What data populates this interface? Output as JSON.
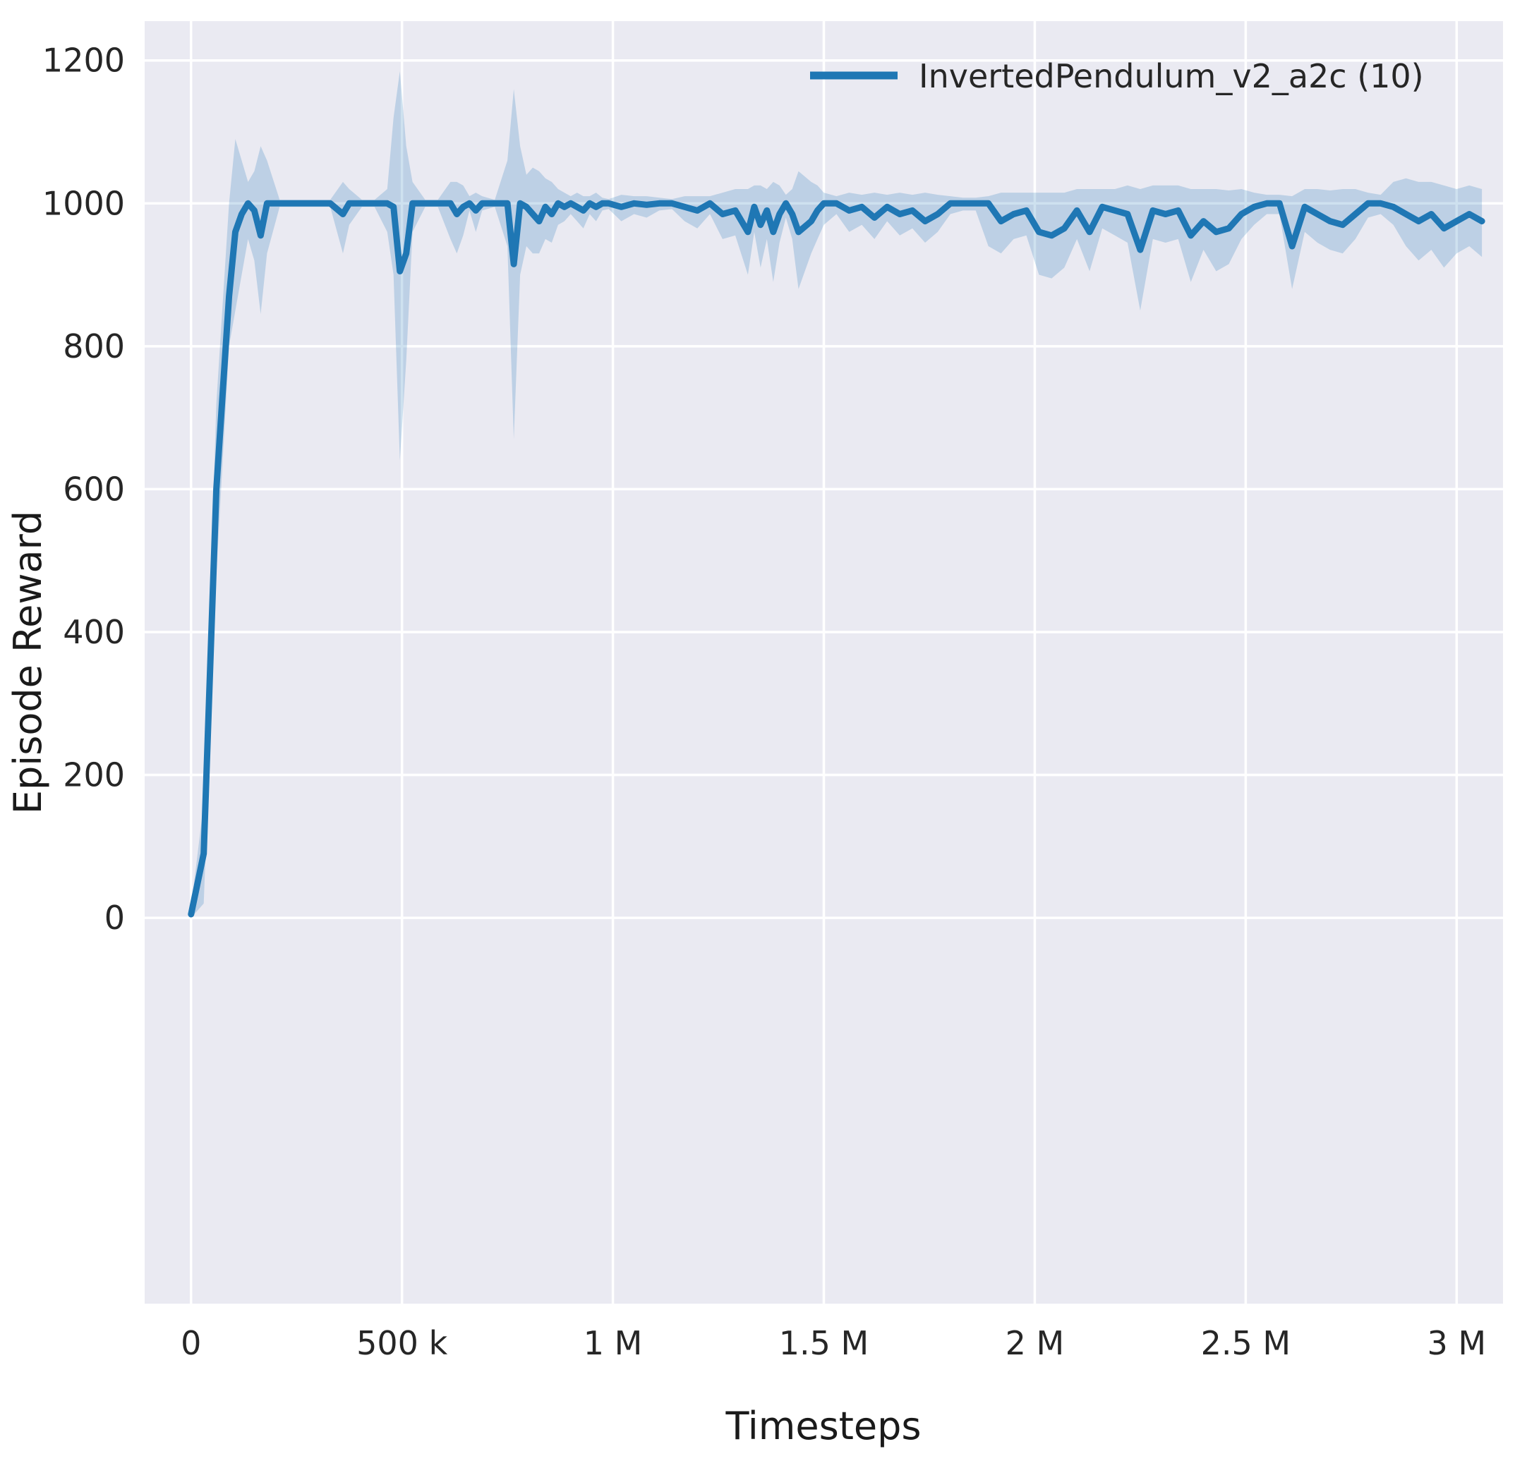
{
  "chart_data": {
    "type": "line",
    "title": "",
    "xlabel": "Timesteps",
    "ylabel": "Episode Reward",
    "legend": [
      "InvertedPendulum_v2_a2c (10)"
    ],
    "legend_position": "upper right",
    "grid": true,
    "xlim": [
      -110000,
      3110000
    ],
    "ylim": [
      -540,
      1255
    ],
    "x_ticks": {
      "values": [
        0,
        500000,
        1000000,
        1500000,
        2000000,
        2500000,
        3000000
      ],
      "labels": [
        "0",
        "500 k",
        "1 M",
        "1.5 M",
        "2 M",
        "2.5 M",
        "3 M"
      ]
    },
    "y_ticks": {
      "values": [
        0,
        200,
        400,
        600,
        800,
        1000,
        1200
      ],
      "labels": [
        "0",
        "200",
        "400",
        "600",
        "800",
        "1000",
        "1200"
      ]
    },
    "colors": {
      "line": "#1f77b4",
      "band": "#1f77b4",
      "band_opacity": 0.22,
      "axes_background": "#eaeaf2",
      "gridline": "#ffffff",
      "tick_text": "#262626"
    },
    "series": [
      {
        "name": "InvertedPendulum_v2_a2c (10)",
        "color": "#1f77b4",
        "band_color": "#1f77b4",
        "band_opacity": 0.22,
        "points_format": [
          "timesteps",
          "mean_reward",
          "band_low",
          "band_high"
        ],
        "points": [
          [
            0,
            5,
            0,
            15
          ],
          [
            30000,
            90,
            20,
            160
          ],
          [
            60000,
            600,
            480,
            720
          ],
          [
            90000,
            870,
            800,
            1000
          ],
          [
            105000,
            960,
            850,
            1090
          ],
          [
            120000,
            985,
            900,
            1060
          ],
          [
            135000,
            1000,
            950,
            1030
          ],
          [
            150000,
            990,
            920,
            1045
          ],
          [
            165000,
            955,
            845,
            1080
          ],
          [
            180000,
            1000,
            930,
            1060
          ],
          [
            210000,
            1000,
            995,
            1005
          ],
          [
            240000,
            1000,
            995,
            1005
          ],
          [
            270000,
            1000,
            995,
            1005
          ],
          [
            300000,
            1000,
            995,
            1005
          ],
          [
            330000,
            1000,
            995,
            1005
          ],
          [
            360000,
            985,
            930,
            1030
          ],
          [
            375000,
            1000,
            970,
            1020
          ],
          [
            405000,
            1000,
            995,
            1005
          ],
          [
            435000,
            1000,
            995,
            1005
          ],
          [
            465000,
            1000,
            960,
            1020
          ],
          [
            480000,
            995,
            900,
            1120
          ],
          [
            495000,
            905,
            640,
            1185
          ],
          [
            510000,
            930,
            780,
            1080
          ],
          [
            525000,
            1000,
            960,
            1030
          ],
          [
            555000,
            1000,
            995,
            1005
          ],
          [
            585000,
            1000,
            995,
            1005
          ],
          [
            615000,
            1000,
            950,
            1030
          ],
          [
            630000,
            985,
            930,
            1030
          ],
          [
            645000,
            995,
            955,
            1025
          ],
          [
            660000,
            1000,
            990,
            1010
          ],
          [
            675000,
            990,
            960,
            1015
          ],
          [
            690000,
            1000,
            990,
            1010
          ],
          [
            720000,
            1000,
            995,
            1005
          ],
          [
            750000,
            1000,
            940,
            1060
          ],
          [
            765000,
            915,
            670,
            1160
          ],
          [
            780000,
            1000,
            900,
            1080
          ],
          [
            795000,
            995,
            940,
            1040
          ],
          [
            810000,
            985,
            930,
            1050
          ],
          [
            825000,
            975,
            930,
            1045
          ],
          [
            840000,
            995,
            950,
            1035
          ],
          [
            855000,
            985,
            945,
            1030
          ],
          [
            870000,
            1000,
            970,
            1020
          ],
          [
            885000,
            995,
            975,
            1015
          ],
          [
            900000,
            1000,
            985,
            1010
          ],
          [
            915000,
            995,
            975,
            1015
          ],
          [
            930000,
            990,
            965,
            1010
          ],
          [
            945000,
            1000,
            985,
            1010
          ],
          [
            960000,
            995,
            975,
            1015
          ],
          [
            975000,
            1000,
            990,
            1008
          ],
          [
            990000,
            1000,
            992,
            1006
          ],
          [
            1020000,
            995,
            975,
            1012
          ],
          [
            1050000,
            1000,
            985,
            1010
          ],
          [
            1080000,
            998,
            980,
            1010
          ],
          [
            1110000,
            1000,
            990,
            1008
          ],
          [
            1140000,
            1000,
            992,
            1006
          ],
          [
            1170000,
            995,
            975,
            1010
          ],
          [
            1200000,
            990,
            965,
            1010
          ],
          [
            1230000,
            1000,
            985,
            1010
          ],
          [
            1260000,
            985,
            950,
            1015
          ],
          [
            1290000,
            990,
            955,
            1020
          ],
          [
            1320000,
            960,
            900,
            1020
          ],
          [
            1335000,
            995,
            960,
            1025
          ],
          [
            1350000,
            970,
            910,
            1025
          ],
          [
            1365000,
            990,
            950,
            1020
          ],
          [
            1380000,
            960,
            890,
            1030
          ],
          [
            1395000,
            985,
            945,
            1025
          ],
          [
            1410000,
            1000,
            980,
            1012
          ],
          [
            1425000,
            985,
            950,
            1020
          ],
          [
            1440000,
            960,
            880,
            1045
          ],
          [
            1470000,
            975,
            930,
            1030
          ],
          [
            1485000,
            990,
            950,
            1025
          ],
          [
            1500000,
            1000,
            970,
            1015
          ],
          [
            1530000,
            1000,
            985,
            1010
          ],
          [
            1560000,
            990,
            960,
            1015
          ],
          [
            1590000,
            995,
            970,
            1012
          ],
          [
            1620000,
            980,
            950,
            1015
          ],
          [
            1650000,
            995,
            975,
            1012
          ],
          [
            1680000,
            985,
            955,
            1015
          ],
          [
            1710000,
            990,
            965,
            1012
          ],
          [
            1740000,
            975,
            945,
            1015
          ],
          [
            1770000,
            985,
            960,
            1012
          ],
          [
            1800000,
            1000,
            985,
            1010
          ],
          [
            1830000,
            1000,
            990,
            1008
          ],
          [
            1860000,
            1000,
            990,
            1008
          ],
          [
            1890000,
            1000,
            940,
            1010
          ],
          [
            1920000,
            975,
            930,
            1015
          ],
          [
            1950000,
            985,
            950,
            1015
          ],
          [
            1980000,
            990,
            955,
            1015
          ],
          [
            2010000,
            960,
            900,
            1015
          ],
          [
            2040000,
            955,
            895,
            1015
          ],
          [
            2070000,
            965,
            910,
            1015
          ],
          [
            2100000,
            990,
            950,
            1020
          ],
          [
            2130000,
            960,
            905,
            1020
          ],
          [
            2160000,
            995,
            965,
            1020
          ],
          [
            2190000,
            990,
            955,
            1020
          ],
          [
            2220000,
            985,
            945,
            1025
          ],
          [
            2250000,
            935,
            850,
            1020
          ],
          [
            2280000,
            990,
            950,
            1025
          ],
          [
            2310000,
            985,
            945,
            1025
          ],
          [
            2340000,
            990,
            950,
            1025
          ],
          [
            2370000,
            955,
            890,
            1020
          ],
          [
            2400000,
            975,
            935,
            1020
          ],
          [
            2430000,
            960,
            905,
            1020
          ],
          [
            2460000,
            965,
            915,
            1018
          ],
          [
            2490000,
            985,
            950,
            1020
          ],
          [
            2520000,
            995,
            970,
            1015
          ],
          [
            2550000,
            1000,
            985,
            1012
          ],
          [
            2580000,
            1000,
            985,
            1012
          ],
          [
            2610000,
            940,
            880,
            1010
          ],
          [
            2640000,
            995,
            960,
            1020
          ],
          [
            2670000,
            985,
            945,
            1020
          ],
          [
            2700000,
            975,
            935,
            1018
          ],
          [
            2730000,
            970,
            930,
            1020
          ],
          [
            2760000,
            985,
            950,
            1020
          ],
          [
            2790000,
            1000,
            980,
            1015
          ],
          [
            2820000,
            1000,
            985,
            1012
          ],
          [
            2850000,
            995,
            970,
            1030
          ],
          [
            2880000,
            985,
            940,
            1035
          ],
          [
            2910000,
            975,
            920,
            1030
          ],
          [
            2940000,
            985,
            935,
            1030
          ],
          [
            2970000,
            965,
            910,
            1025
          ],
          [
            3000000,
            975,
            930,
            1020
          ],
          [
            3030000,
            985,
            940,
            1025
          ],
          [
            3060000,
            975,
            925,
            1020
          ]
        ]
      }
    ]
  }
}
